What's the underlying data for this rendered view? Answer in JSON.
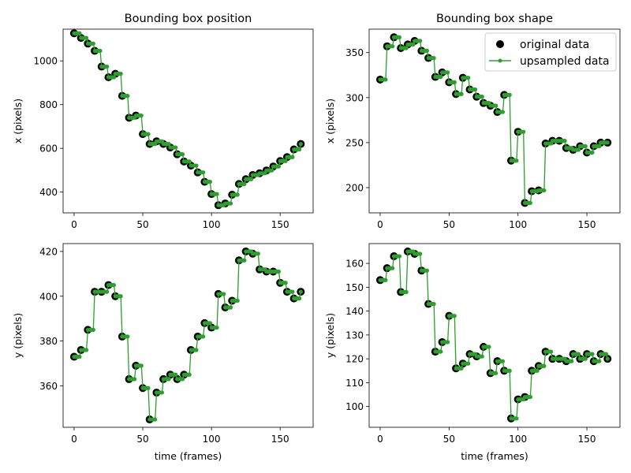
{
  "figure": {
    "legend": {
      "entries": [
        "original data",
        "upsampled data"
      ],
      "placement": "upper right of top-right panel"
    },
    "colors": {
      "original": "#000000",
      "upsampled": "#2ca02c"
    }
  },
  "chart_data": [
    {
      "type": "scatter+line",
      "title": "Bounding box position",
      "xlabel": "",
      "ylabel": "x (pixels)",
      "xlim": [
        -8,
        174
      ],
      "ylim": [
        305,
        1145
      ],
      "xticks": [
        0,
        50,
        100,
        150
      ],
      "yticks": [
        400,
        600,
        800,
        1000
      ],
      "x": [
        0,
        5,
        10,
        15,
        20,
        25,
        30,
        35,
        40,
        45,
        50,
        55,
        60,
        65,
        70,
        75,
        80,
        85,
        90,
        95,
        100,
        105,
        110,
        115,
        120,
        125,
        130,
        135,
        140,
        145,
        150,
        155,
        160,
        165
      ],
      "series": [
        {
          "name": "original data",
          "values": [
            1126,
            1105,
            1079,
            1046,
            974,
            925,
            941,
            840,
            740,
            750,
            665,
            620,
            632,
            620,
            604,
            573,
            540,
            521,
            490,
            447,
            391,
            340,
            348,
            388,
            437,
            459,
            478,
            486,
            499,
            517,
            542,
            560,
            595,
            620
          ]
        }
      ]
    },
    {
      "type": "scatter+line",
      "title": "Bounding box shape",
      "xlabel": "",
      "ylabel": "x (pixels)",
      "xlim": [
        -8,
        174
      ],
      "ylim": [
        172,
        376
      ],
      "xticks": [
        0,
        50,
        100,
        150
      ],
      "yticks": [
        200,
        250,
        300,
        350
      ],
      "legend": "top-right",
      "x": [
        0,
        5,
        10,
        15,
        20,
        25,
        30,
        35,
        40,
        45,
        50,
        55,
        60,
        65,
        70,
        75,
        80,
        85,
        90,
        95,
        100,
        105,
        110,
        115,
        120,
        125,
        130,
        135,
        140,
        145,
        150,
        155,
        160,
        165
      ],
      "series": [
        {
          "name": "original data",
          "values": [
            320,
            357,
            367,
            355,
            359,
            363,
            352,
            344,
            323,
            328,
            317,
            304,
            322,
            309,
            301,
            294,
            291,
            284,
            303,
            230,
            262,
            183,
            196,
            197,
            249,
            252,
            252,
            244,
            242,
            246,
            239,
            246,
            250,
            250
          ]
        }
      ]
    },
    {
      "type": "scatter+line",
      "title": "",
      "xlabel": "time (frames)",
      "ylabel": "y (pixels)",
      "xlim": [
        -8,
        174
      ],
      "ylim": [
        341.5,
        423.5
      ],
      "xticks": [
        0,
        50,
        100,
        150
      ],
      "yticks": [
        360,
        380,
        400,
        420
      ],
      "x": [
        0,
        5,
        10,
        15,
        20,
        25,
        30,
        35,
        40,
        45,
        50,
        55,
        60,
        65,
        70,
        75,
        80,
        85,
        90,
        95,
        100,
        105,
        110,
        115,
        120,
        125,
        130,
        135,
        140,
        145,
        150,
        155,
        160,
        165
      ],
      "series": [
        {
          "name": "original data",
          "values": [
            373,
            376,
            385,
            402,
            402,
            405,
            400,
            382,
            363,
            369,
            359,
            345,
            357,
            363,
            365,
            363,
            365,
            376,
            382,
            388,
            386,
            401,
            395,
            398,
            416,
            420,
            419,
            412,
            411,
            411,
            406,
            402,
            399,
            402
          ]
        }
      ]
    },
    {
      "type": "scatter+line",
      "title": "",
      "xlabel": "time (frames)",
      "ylabel": "y (pixels)",
      "xlim": [
        -8,
        174
      ],
      "ylim": [
        91.3,
        168.3
      ],
      "xticks": [
        0,
        50,
        100,
        150
      ],
      "yticks": [
        100,
        110,
        120,
        130,
        140,
        150,
        160
      ],
      "x": [
        0,
        5,
        10,
        15,
        20,
        25,
        30,
        35,
        40,
        45,
        50,
        55,
        60,
        65,
        70,
        75,
        80,
        85,
        90,
        95,
        100,
        105,
        110,
        115,
        120,
        125,
        130,
        135,
        140,
        145,
        150,
        155,
        160,
        165
      ],
      "series": [
        {
          "name": "original data",
          "values": [
            153,
            158,
            163,
            148,
            165,
            164,
            157,
            143,
            123,
            127,
            138,
            116,
            118,
            122,
            121,
            125,
            114,
            119,
            115,
            95,
            103,
            104,
            115,
            117,
            123,
            120,
            120,
            119,
            122,
            120,
            122,
            119,
            122,
            120
          ]
        }
      ]
    }
  ]
}
